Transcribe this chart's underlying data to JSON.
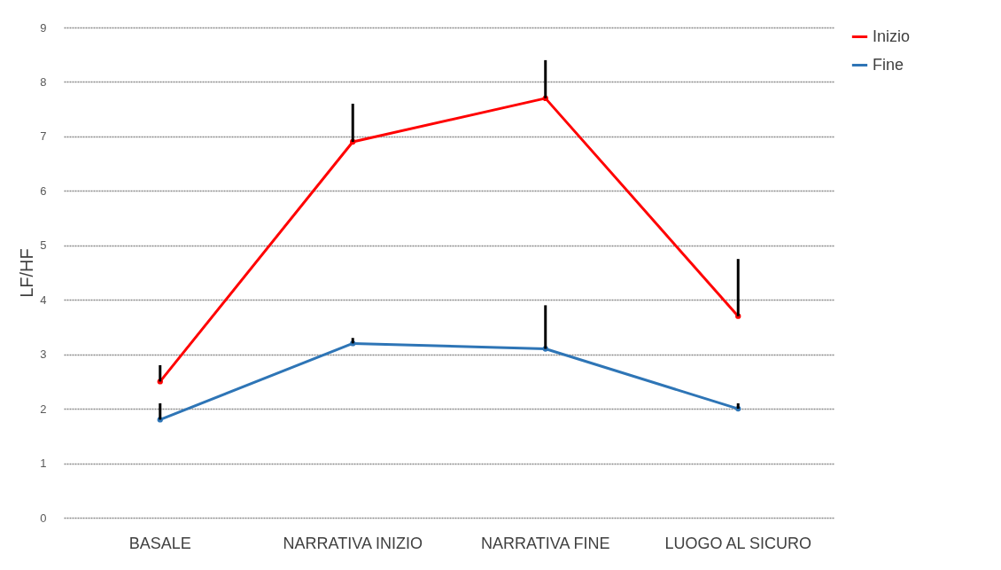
{
  "chart_data": {
    "type": "line",
    "ylabel": "LF/HF",
    "categories": [
      "BASALE",
      "NARRATIVA INIZIO",
      "NARRATIVA FINE",
      "LUOGO AL SICURO"
    ],
    "ylim": [
      0,
      9
    ],
    "yticks": [
      0,
      1,
      2,
      3,
      4,
      5,
      6,
      7,
      8,
      9
    ],
    "grid": "y",
    "legend": "right",
    "marker": "circle",
    "line_style": "solid",
    "series": [
      {
        "name": "Inizio",
        "color": "#ff0000",
        "values": [
          2.5,
          6.9,
          7.7,
          3.7
        ],
        "errors": [
          [
            2.5,
            2.8
          ],
          [
            6.9,
            7.6
          ],
          [
            7.7,
            8.4
          ],
          [
            3.7,
            4.75
          ]
        ]
      },
      {
        "name": "Fine",
        "color": "#2e75b6",
        "values": [
          1.8,
          3.2,
          3.1,
          2.0
        ],
        "errors": [
          [
            1.8,
            2.1
          ],
          [
            3.2,
            3.3
          ],
          [
            3.1,
            3.9
          ],
          [
            2.0,
            2.1
          ]
        ]
      }
    ]
  }
}
